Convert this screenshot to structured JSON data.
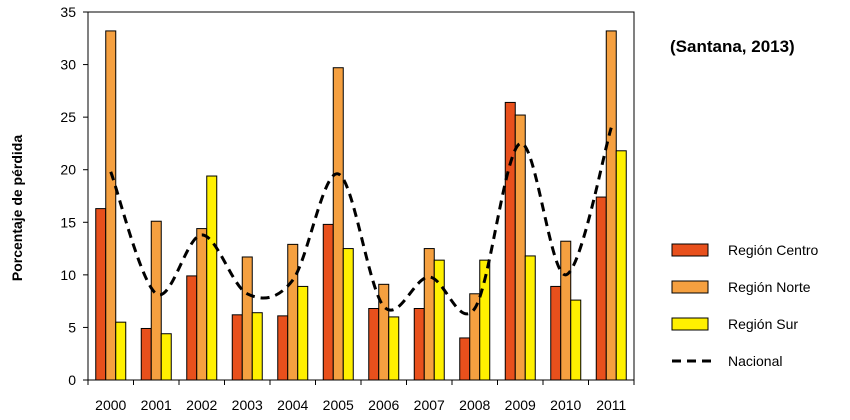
{
  "chart_data": {
    "type": "bar",
    "title": "",
    "annotation": "(Santana, 2013)",
    "xlabel": "",
    "ylabel": "Porcentaje de pérdida",
    "ylim": [
      0,
      35
    ],
    "yticks": [
      "0",
      "5",
      "10",
      "15",
      "20",
      "25",
      "30",
      "35"
    ],
    "categories": [
      "2000",
      "2001",
      "2002",
      "2003",
      "2004",
      "2005",
      "2006",
      "2007",
      "2008",
      "2009",
      "2010",
      "2011"
    ],
    "series": [
      {
        "name": "Región Centro",
        "type": "bar",
        "color": "#E8501C",
        "values": [
          16.3,
          4.9,
          9.9,
          6.2,
          6.1,
          14.8,
          6.8,
          6.8,
          4.0,
          26.4,
          8.9,
          17.4
        ]
      },
      {
        "name": "Región Norte",
        "type": "bar",
        "color": "#F5A040",
        "values": [
          33.2,
          15.1,
          14.4,
          11.7,
          12.9,
          29.7,
          9.1,
          12.5,
          8.2,
          25.2,
          13.2,
          33.2
        ]
      },
      {
        "name": "Región Sur",
        "type": "bar",
        "color": "#FFF000",
        "values": [
          5.5,
          4.4,
          19.4,
          6.4,
          8.9,
          12.5,
          6.0,
          11.4,
          11.4,
          11.8,
          7.6,
          21.8
        ]
      },
      {
        "name": "Nacional",
        "type": "line",
        "style": "dashed",
        "color": "#000000",
        "values": [
          19.8,
          8.2,
          13.8,
          8.2,
          9.5,
          19.6,
          7.0,
          9.8,
          6.8,
          22.5,
          10.0,
          24.0
        ]
      }
    ],
    "grid": false,
    "legend_position": "right"
  }
}
